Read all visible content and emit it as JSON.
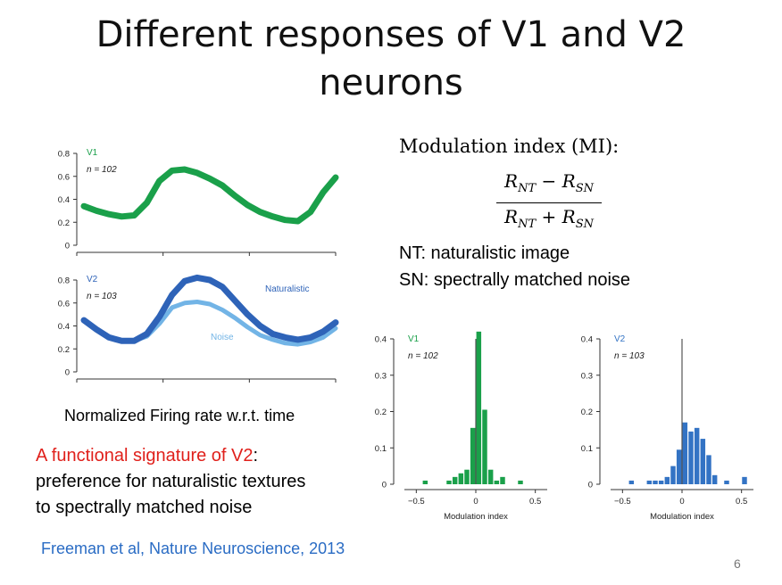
{
  "slide": {
    "title_line1": "Different responses of V1 and V2",
    "title_line2": "neurons",
    "modulation_label": "Modulation index (MI):",
    "formula_num_r": "R",
    "formula_num_sub1": "NT",
    "formula_minus": "−",
    "formula_num_sub2": "SN",
    "formula_den_r": "R",
    "formula_den_sub1": "NT",
    "formula_plus": "+",
    "formula_den_sub2": "SN",
    "nt_def": "NT: naturalistic image",
    "sn_def": "SN: spectrally matched noise",
    "left_caption": "Normalized Firing rate w.r.t. time",
    "signature_red": "A functional signature of V2",
    "signature_colon": ":",
    "signature_line2": "preference for naturalistic textures",
    "signature_line3": "to spectrally matched noise",
    "citation": "Freeman et al, Nature Neuroscience, 2013",
    "page_number": "6"
  },
  "colors": {
    "v1_green": "#1aa04a",
    "v2_dark_blue": "#2e63b8",
    "v2_light_blue": "#72b4e6",
    "hist_v1": "#1aa04a",
    "hist_v2": "#3373c4",
    "red_text": "#e0201b",
    "citation_blue": "#2a6cc4"
  },
  "chart_data": [
    {
      "type": "line",
      "panel": "V1 firing rate",
      "label": "V1",
      "n_label": "n = 102",
      "yticks": [
        "0",
        "0.2",
        "0.4",
        "0.6",
        "0.8"
      ],
      "ylim": [
        0,
        0.8
      ],
      "x": [
        0,
        0.05,
        0.1,
        0.15,
        0.2,
        0.25,
        0.3,
        0.35,
        0.4,
        0.45,
        0.5,
        0.55,
        0.6,
        0.65,
        0.7,
        0.75,
        0.8,
        0.85,
        0.9,
        0.95,
        1.0
      ],
      "series": [
        {
          "values": [
            0.34,
            0.3,
            0.27,
            0.25,
            0.26,
            0.37,
            0.56,
            0.65,
            0.66,
            0.63,
            0.58,
            0.52,
            0.43,
            0.35,
            0.29,
            0.25,
            0.22,
            0.21,
            0.29,
            0.46,
            0.59
          ]
        }
      ]
    },
    {
      "type": "line",
      "panel": "V2 firing rate",
      "label": "V2",
      "n_label": "n = 103",
      "yticks": [
        "0",
        "0.2",
        "0.4",
        "0.6",
        "0.8"
      ],
      "ylim": [
        0,
        0.8
      ],
      "x": [
        0,
        0.05,
        0.1,
        0.15,
        0.2,
        0.25,
        0.3,
        0.35,
        0.4,
        0.45,
        0.5,
        0.55,
        0.6,
        0.65,
        0.7,
        0.75,
        0.8,
        0.85,
        0.9,
        0.95,
        1.0
      ],
      "series": [
        {
          "name": "Naturalistic",
          "values": [
            0.45,
            0.37,
            0.3,
            0.27,
            0.27,
            0.33,
            0.48,
            0.67,
            0.79,
            0.82,
            0.8,
            0.74,
            0.62,
            0.5,
            0.4,
            0.33,
            0.3,
            0.28,
            0.3,
            0.35,
            0.43
          ]
        },
        {
          "name": "Noise",
          "values": [
            0.45,
            0.37,
            0.3,
            0.27,
            0.27,
            0.31,
            0.42,
            0.56,
            0.6,
            0.61,
            0.59,
            0.54,
            0.47,
            0.39,
            0.32,
            0.28,
            0.25,
            0.24,
            0.26,
            0.3,
            0.38
          ]
        }
      ]
    },
    {
      "type": "bar",
      "panel": "V1 modulation index histogram",
      "label": "V1",
      "n_label": "n = 102",
      "xlabel": "Modulation index",
      "xticks": [
        "−0.5",
        "0",
        "0.5"
      ],
      "yticks": [
        "0",
        "0.1",
        "0.2",
        "0.3",
        "0.4"
      ],
      "ylim": [
        0,
        0.4
      ],
      "bin_width": 0.05,
      "bins": [
        -0.425,
        -0.225,
        -0.175,
        -0.125,
        -0.075,
        -0.025,
        0.025,
        0.075,
        0.125,
        0.175,
        0.225,
        0.375
      ],
      "values": [
        0.01,
        0.01,
        0.02,
        0.03,
        0.04,
        0.155,
        0.42,
        0.205,
        0.04,
        0.01,
        0.02,
        0.01
      ],
      "vline": 0
    },
    {
      "type": "bar",
      "panel": "V2 modulation index histogram",
      "label": "V2",
      "n_label": "n = 103",
      "xlabel": "Modulation index",
      "xticks": [
        "−0.5",
        "0",
        "0.5"
      ],
      "yticks": [
        "0",
        "0.1",
        "0.2",
        "0.3",
        "0.4"
      ],
      "ylim": [
        0,
        0.4
      ],
      "bin_width": 0.05,
      "bins": [
        -0.425,
        -0.275,
        -0.225,
        -0.175,
        -0.125,
        -0.075,
        -0.025,
        0.025,
        0.075,
        0.125,
        0.175,
        0.225,
        0.275,
        0.375,
        0.525
      ],
      "values": [
        0.01,
        0.01,
        0.01,
        0.01,
        0.02,
        0.05,
        0.095,
        0.17,
        0.145,
        0.155,
        0.125,
        0.08,
        0.025,
        0.01,
        0.02
      ],
      "vline": 0
    }
  ]
}
